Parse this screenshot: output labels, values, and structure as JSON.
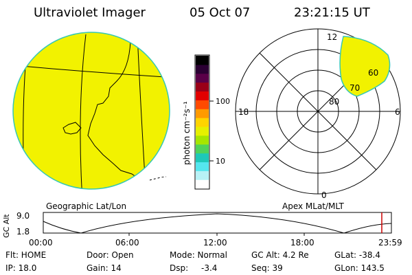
{
  "header": {
    "title": "Ultraviolet Imager",
    "date": "05 Oct 07",
    "time": "23:21:15 UT"
  },
  "colorbar": {
    "unit_label": "photon cm⁻²s⁻¹",
    "ticks": [
      "100",
      "10"
    ],
    "colors": [
      "#000000",
      "#2b0033",
      "#5a0048",
      "#9a0018",
      "#e20000",
      "#ff4a00",
      "#ff9a00",
      "#ffd400",
      "#e6f000",
      "#a6e600",
      "#4fd35a",
      "#1ec8b8",
      "#55e6ee",
      "#b8f2f6",
      "#ffffff"
    ]
  },
  "left_panel": {
    "label": "Geographic Lat/Lon",
    "disk_color": "#f2f200",
    "edge_color": "#36c8b4"
  },
  "right_panel": {
    "label": "Apex MLat/MLT",
    "mlt_labels": {
      "top": "12",
      "left": "18",
      "right": "6",
      "bottom": "0"
    },
    "mlat_labels": [
      "80",
      "70",
      "60"
    ]
  },
  "altitude_plot": {
    "ylabel": "GC Alt",
    "y_ticks": [
      "9.0",
      "1.8"
    ],
    "x_ticks": [
      "00:00",
      "06:00",
      "12:00",
      "18:00",
      "23:59"
    ],
    "marker_color": "#cc0000"
  },
  "status": {
    "flt": "Flt: HOME",
    "door": "Door: Open",
    "mode": "Mode: Normal",
    "gc_alt": "GC Alt: 4.2 Re",
    "glat": "GLat: -38.4",
    "ip": "IP: 18.0",
    "gain": "Gain: 14",
    "dsp_label": "Dsp:",
    "dsp_value": "-3.4",
    "seq": "Seq: 39",
    "glon": "GLon: 143.5"
  }
}
